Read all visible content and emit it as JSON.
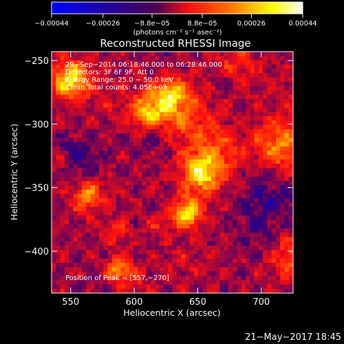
{
  "chart_data": {
    "type": "heatmap",
    "title": "Reconstructed RHESSI Image",
    "xlabel": "Heliocentric X (arcsec)",
    "ylabel": "Heliocentric Y (arcsec)",
    "xlim": [
      535,
      725
    ],
    "ylim": [
      -433,
      -243
    ],
    "x_ticks": [
      550,
      600,
      650,
      700
    ],
    "x_tick_labels": [
      "550",
      "600",
      "650",
      "700"
    ],
    "y_ticks": [
      -250,
      -300,
      -350,
      -400
    ],
    "y_tick_labels": [
      "−250",
      "−300",
      "−350",
      "−400"
    ],
    "colorbar": {
      "range": [
        -0.00044,
        0.00044
      ],
      "ticks": [
        -0.00044,
        -0.00026,
        -8.8e-05,
        8.8e-05,
        0.00026,
        0.00044
      ],
      "tick_labels": [
        "−0.00044",
        "−0.00026",
        "−8.8e−05",
        "8.8e−05",
        "0.00026",
        "0.00044"
      ],
      "units": "(photons cm⁻² s⁻¹ asec⁻²)",
      "colormap": [
        "#0000ff",
        "#3a0070",
        "#ff1010",
        "#ff7a00",
        "#ffff00",
        "#ffffff"
      ]
    },
    "annotations": {
      "time": "29−Sep−2014 06:18:46.000 to 06:28:46.000",
      "detectors": "Detectors: 3F 6F 9F, Att 0",
      "energy": "Energy Range: 25.0 − 50.0 keV",
      "method": "Clean    Total counts: 4.05E+03",
      "peak": "Position of Peak = [557,−270]"
    },
    "peak": [
      557,
      -270
    ],
    "grid": false
  },
  "footer": {
    "date": "21−May−2017 18:45"
  }
}
